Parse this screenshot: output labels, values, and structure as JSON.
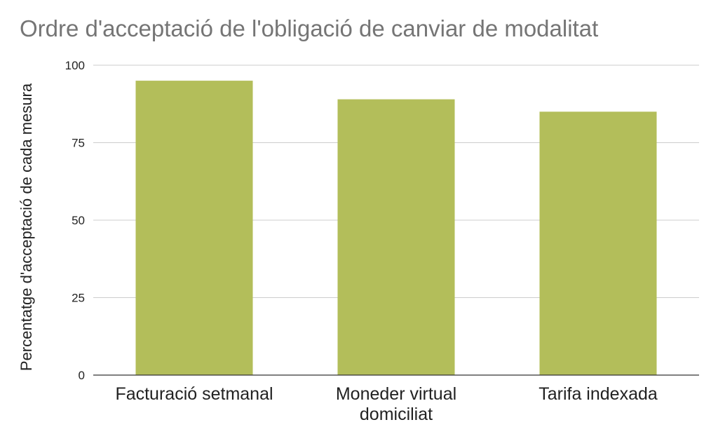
{
  "chart_data": {
    "type": "bar",
    "title": "Ordre d'acceptació de l'obligació de canviar de modalitat",
    "xlabel": "",
    "ylabel": "Percentatge d'acceptació de cada mesura",
    "categories": [
      [
        "Facturació setmanal"
      ],
      [
        "Moneder virtual",
        "domiciliat"
      ],
      [
        "Tarifa indexada"
      ]
    ],
    "values": [
      95,
      89,
      85
    ],
    "ylim": [
      0,
      100
    ],
    "yticks": [
      "0",
      "25",
      "50",
      "75",
      "100"
    ],
    "bar_color": "#b3be5a",
    "grid": true,
    "legend": "none"
  }
}
